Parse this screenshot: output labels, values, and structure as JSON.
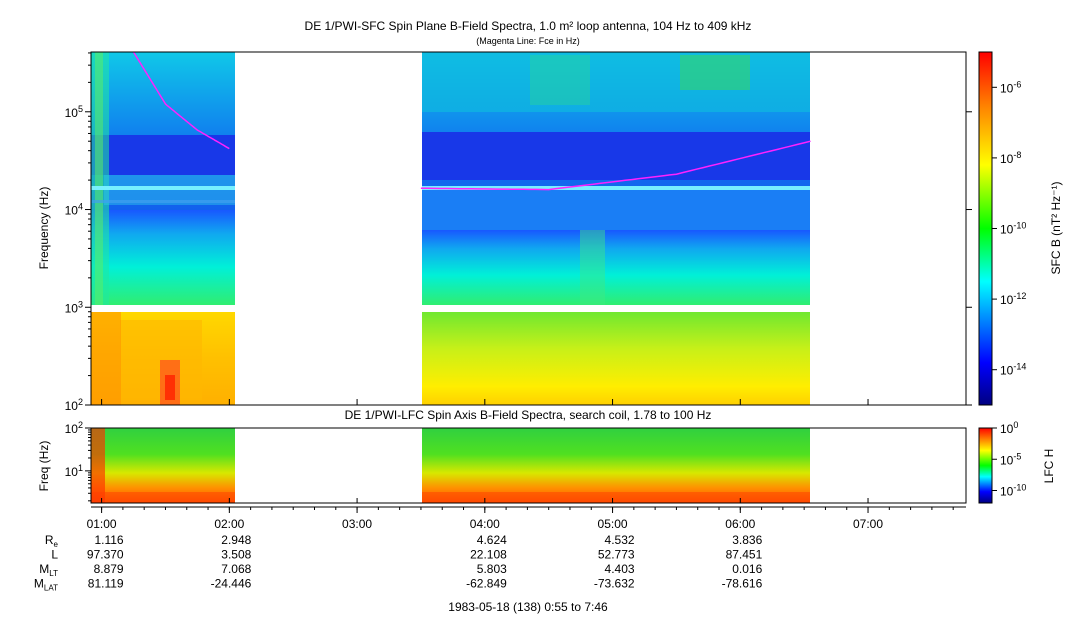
{
  "top_panel": {
    "title": "DE 1/PWI-SFC  Spin Plane B-Field Spectra, 1.0 m² loop antenna, 104 Hz to 409 kHz",
    "subtitle": "(Magenta Line: Fce in Hz)",
    "ylabel": "Frequency (Hz)",
    "y_ticks": [
      {
        "exp": "2",
        "value": 100
      },
      {
        "exp": "3",
        "value": 1000
      },
      {
        "exp": "4",
        "value": 10000
      },
      {
        "exp": "5",
        "value": 100000
      }
    ],
    "colorbar_label": "SFC B (nT² Hz⁻¹)",
    "colorbar_ticks": [
      {
        "exp": "-6"
      },
      {
        "exp": "-8"
      },
      {
        "exp": "-10"
      },
      {
        "exp": "-12"
      },
      {
        "exp": "-14"
      }
    ]
  },
  "bottom_panel": {
    "title": "DE 1/PWI-LFC  Spin Axis B-Field Spectra, search coil, 1.78 to 100 Hz",
    "ylabel": "Freq (Hz)",
    "y_ticks": [
      {
        "exp": "1",
        "value": 10
      },
      {
        "exp": "2",
        "value": 100
      }
    ],
    "colorbar_label": "LFC H",
    "colorbar_ticks": [
      {
        "exp": "0"
      },
      {
        "exp": "-5"
      },
      {
        "exp": "-10"
      }
    ]
  },
  "x_ticks": [
    "01:00",
    "02:00",
    "03:00",
    "04:00",
    "05:00",
    "06:00",
    "07:00"
  ],
  "ephemeris": {
    "row_labels": [
      "Re",
      "L",
      "MLT",
      "MLAT"
    ],
    "columns": [
      {
        "values": [
          "1.116",
          "97.370",
          "8.879",
          "81.119"
        ]
      },
      {
        "values": [
          "2.948",
          "3.508",
          "7.068",
          "-24.446"
        ]
      },
      {
        "values": [
          "",
          "",
          "",
          ""
        ]
      },
      {
        "values": [
          "4.624",
          "22.108",
          "5.803",
          "-62.849"
        ]
      },
      {
        "values": [
          "4.532",
          "52.773",
          "4.403",
          "-73.632"
        ]
      },
      {
        "values": [
          "3.836",
          "87.451",
          "0.016",
          "-78.616"
        ]
      },
      {
        "values": [
          "",
          "",
          "",
          ""
        ]
      }
    ]
  },
  "footer": "1983-05-18 (138) 0:55 to 7:46",
  "colors": {
    "magenta_line": "#ff22ff",
    "cyan_line": "#77f0ff"
  },
  "chart_data": {
    "type": "heatmap",
    "x_axis": {
      "ticks": [
        "01:00",
        "02:00",
        "03:00",
        "04:00",
        "05:00",
        "06:00",
        "07:00"
      ],
      "range_hours": [
        0.917,
        7.767
      ]
    },
    "data_intervals_hours": [
      [
        0.917,
        2.0
      ],
      [
        3.5,
        6.55
      ]
    ],
    "sfc": {
      "scale": "log",
      "ylim_hz": [
        100,
        409000
      ],
      "zlim": [
        1e-15,
        1e-05
      ],
      "gap_near_hz": 1000
    },
    "lfc": {
      "scale": "log",
      "ylim_hz": [
        1.78,
        100
      ],
      "zlim": [
        1e-12,
        1
      ]
    },
    "fce_line_hz": [
      {
        "time_h": 1.25,
        "fce": 409000
      },
      {
        "time_h": 1.5,
        "fce": 120000
      },
      {
        "time_h": 1.75,
        "fce": 65000
      },
      {
        "time_h": 2.0,
        "fce": 42000
      },
      {
        "time_h": 3.5,
        "fce": 16500
      },
      {
        "time_h": 4.5,
        "fce": 16000
      },
      {
        "time_h": 5.5,
        "fce": 23000
      },
      {
        "time_h": 6.55,
        "fce": 50000
      }
    ]
  }
}
